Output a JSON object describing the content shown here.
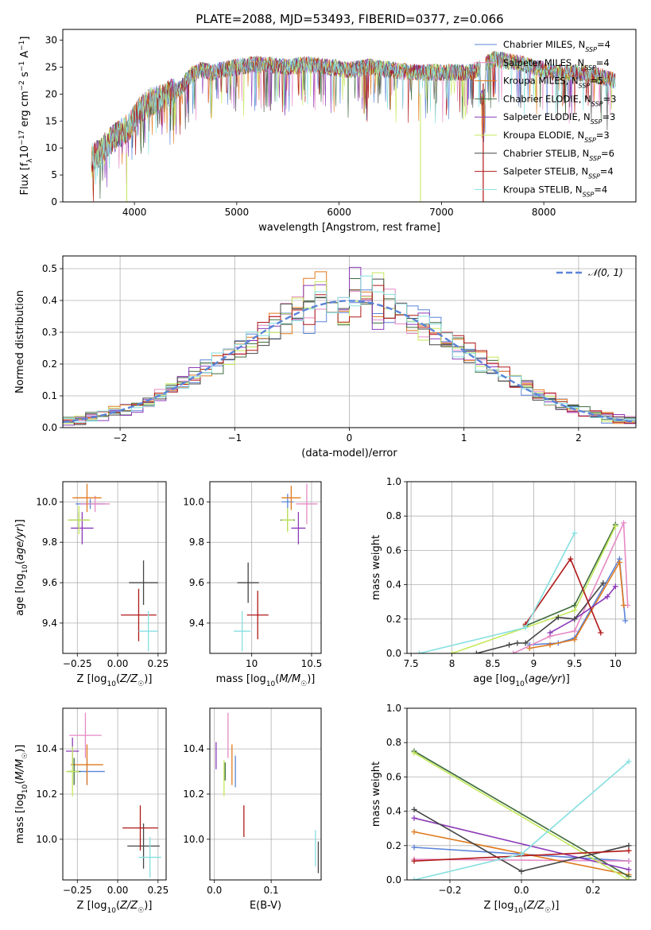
{
  "figure": {
    "title": "PLATE=2088, MJD=53493, FIBERID=0377, z=0.066"
  },
  "colors": {
    "Chabrier MILES": "#5b84d8",
    "Salpeter MILES": "#e68ac5",
    "Kroupa MILES": "#e07a1f",
    "Chabrier ELODIE": "#3d6b3d",
    "Salpeter ELODIE": "#8b3ab8",
    "Kroupa ELODIE": "#c4e85a",
    "Chabrier STELIB": "#454545",
    "Salpeter STELIB": "#b01818",
    "Kroupa STELIB": "#86dfe0",
    "gaussian": "#5b84d8",
    "grid": "#b0b0b0"
  },
  "chart_data": [
    {
      "id": "spectrum",
      "type": "line",
      "title": "PLATE=2088, MJD=53493, FIBERID=0377, z=0.066",
      "xlabel": "wavelength [Angstrom, rest frame]",
      "ylabel": "Flux [f_λ 10^-17 erg cm^-2 s^-1 A^-1]",
      "xlim": [
        3300,
        8900
      ],
      "ylim": [
        0,
        32
      ],
      "xticks": [
        4000,
        5000,
        6000,
        7000,
        8000
      ],
      "yticks": [
        0,
        5,
        10,
        15,
        20,
        25,
        30
      ],
      "grid": false,
      "legend_position": "right",
      "series": [
        {
          "name": "Chabrier MILES, N_SSP=4"
        },
        {
          "name": "Salpeter MILES, N_SSP=4"
        },
        {
          "name": "Kroupa MILES, N_SSP=5"
        },
        {
          "name": "Chabrier ELODIE, N_SSP=3"
        },
        {
          "name": "Salpeter ELODIE, N_SSP=3"
        },
        {
          "name": "Kroupa ELODIE, N_SSP=3"
        },
        {
          "name": "Chabrier STELIB, N_SSP=6"
        },
        {
          "name": "Salpeter STELIB, N_SSP=4"
        },
        {
          "name": "Kroupa STELIB, N_SSP=4"
        }
      ],
      "continuum": {
        "x": [
          3580,
          3650,
          3750,
          3850,
          3950,
          4050,
          4150,
          4250,
          4350,
          4450,
          4550,
          4650,
          4750,
          4850,
          5000,
          5150,
          5300,
          5500,
          5700,
          5900,
          6100,
          6300,
          6500,
          6700,
          6900,
          7100,
          7300,
          7500,
          7700,
          7900,
          8100,
          8300,
          8500,
          8700
        ],
        "y": [
          8,
          9,
          11,
          12.5,
          14,
          17,
          18.5,
          19,
          20,
          21,
          23.5,
          24.5,
          24,
          24.5,
          25,
          25.5,
          25.5,
          25,
          25.5,
          25,
          24.5,
          25,
          24.5,
          24,
          24,
          24,
          24,
          26.5,
          26,
          25,
          24,
          24,
          23.5,
          22.5
        ]
      }
    },
    {
      "id": "residuals",
      "type": "line",
      "xlabel": "(data-model)/error",
      "ylabel": "Normed distribution",
      "xlim": [
        -2.5,
        2.5
      ],
      "ylim": [
        0,
        0.54
      ],
      "xticks": [
        -2,
        -1,
        0,
        1,
        2
      ],
      "yticks": [
        0.0,
        0.1,
        0.2,
        0.3,
        0.4,
        0.5
      ],
      "grid": true,
      "legend_position": "upper right",
      "legend": "𝒩(0, 1)",
      "gaussian": {
        "mean": 0,
        "sigma": 1
      }
    },
    {
      "id": "age-vs-Z",
      "type": "scatter",
      "xlabel": "Z [log10(Z/Z☉)]",
      "ylabel": "age [log10(age/yr)]",
      "xlim": [
        -0.34,
        0.3
      ],
      "ylim": [
        9.25,
        10.1
      ],
      "xticks": [
        -0.25,
        0.0,
        0.25
      ],
      "xticklabels": [
        "−0.25",
        "0.00",
        "0.25"
      ],
      "yticks": [
        9.4,
        9.6,
        9.8,
        10.0
      ],
      "grid": true,
      "points": [
        {
          "s": "Chabrier MILES",
          "x": -0.17,
          "y": 9.99,
          "xe": 0.09,
          "ye": 0.025
        },
        {
          "s": "Salpeter MILES",
          "x": -0.14,
          "y": 9.99,
          "xe": 0.09,
          "ye": 0.04
        },
        {
          "s": "Kroupa MILES",
          "x": -0.19,
          "y": 10.02,
          "xe": 0.09,
          "ye": 0.07
        },
        {
          "s": "Chabrier ELODIE",
          "x": -0.24,
          "y": 9.91,
          "xe": 0.06,
          "ye": 0.04
        },
        {
          "s": "Salpeter ELODIE",
          "x": -0.22,
          "y": 9.87,
          "xe": 0.07,
          "ye": 0.08
        },
        {
          "s": "Kroupa ELODIE",
          "x": -0.24,
          "y": 9.91,
          "xe": 0.07,
          "ye": 0.07
        },
        {
          "s": "Chabrier STELIB",
          "x": 0.16,
          "y": 9.6,
          "xe": 0.09,
          "ye": 0.11
        },
        {
          "s": "Salpeter STELIB",
          "x": 0.13,
          "y": 9.44,
          "xe": 0.11,
          "ye": 0.13
        },
        {
          "s": "Kroupa STELIB",
          "x": 0.19,
          "y": 9.36,
          "xe": 0.06,
          "ye": 0.1
        }
      ]
    },
    {
      "id": "age-vs-mass",
      "type": "scatter",
      "xlabel": "mass [log10(M/M☉)]",
      "ylabel": "",
      "xlim": [
        9.65,
        10.58
      ],
      "ylim": [
        9.25,
        10.1
      ],
      "xticks": [
        10.0,
        10.5
      ],
      "yticks": [
        9.4,
        9.6,
        9.8,
        10.0
      ],
      "grid": true,
      "points": [
        {
          "s": "Chabrier MILES",
          "x": 10.3,
          "y": 10.0,
          "xe": 0.05,
          "ye": 0.04
        },
        {
          "s": "Salpeter MILES",
          "x": 10.46,
          "y": 9.99,
          "xe": 0.09,
          "ye": 0.1
        },
        {
          "s": "Kroupa MILES",
          "x": 10.33,
          "y": 10.02,
          "xe": 0.08,
          "ye": 0.06
        },
        {
          "s": "Chabrier ELODIE",
          "x": 10.3,
          "y": 9.91,
          "xe": 0.06,
          "ye": 0.05
        },
        {
          "s": "Salpeter ELODIE",
          "x": 10.39,
          "y": 9.87,
          "xe": 0.06,
          "ye": 0.08
        },
        {
          "s": "Kroupa ELODIE",
          "x": 10.3,
          "y": 9.91,
          "xe": 0.05,
          "ye": 0.06
        },
        {
          "s": "Chabrier STELIB",
          "x": 9.97,
          "y": 9.6,
          "xe": 0.09,
          "ye": 0.1
        },
        {
          "s": "Salpeter STELIB",
          "x": 10.05,
          "y": 9.44,
          "xe": 0.09,
          "ye": 0.12
        },
        {
          "s": "Kroupa STELIB",
          "x": 9.92,
          "y": 9.36,
          "xe": 0.07,
          "ye": 0.1
        }
      ]
    },
    {
      "id": "weight-vs-age",
      "type": "line",
      "xlabel": "age [log10(age/yr)]",
      "ylabel": "mass weight",
      "xlim": [
        7.45,
        10.25
      ],
      "ylim": [
        0,
        1
      ],
      "xticks": [
        7.5,
        8.0,
        8.5,
        9.0,
        9.5,
        10.0
      ],
      "yticks": [
        0.0,
        0.2,
        0.4,
        0.6,
        0.8,
        1.0
      ],
      "grid": true,
      "series": [
        {
          "s": "Chabrier MILES",
          "x": [
            8.95,
            9.3,
            9.5,
            10.05,
            10.12
          ],
          "y": [
            0.05,
            0.06,
            0.09,
            0.55,
            0.19
          ]
        },
        {
          "s": "Salpeter MILES",
          "x": [
            8.75,
            9.2,
            9.5,
            10.1,
            10.15
          ],
          "y": [
            0.0,
            0.1,
            0.13,
            0.76,
            0.28
          ]
        },
        {
          "s": "Kroupa MILES",
          "x": [
            8.95,
            9.2,
            9.5,
            10.05,
            10.1
          ],
          "y": [
            0.03,
            0.05,
            0.08,
            0.53,
            0.28
          ]
        },
        {
          "s": "Chabrier ELODIE",
          "x": [
            8.9,
            9.5,
            10.0
          ],
          "y": [
            0.16,
            0.28,
            0.75
          ]
        },
        {
          "s": "Salpeter ELODIE",
          "x": [
            9.2,
            9.5,
            9.9,
            10.0
          ],
          "y": [
            0.12,
            0.2,
            0.33,
            0.39
          ]
        },
        {
          "s": "Kroupa ELODIE",
          "x": [
            8.0,
            9.5,
            10.0
          ],
          "y": [
            0.0,
            0.25,
            0.74
          ]
        },
        {
          "s": "Chabrier STELIB",
          "x": [
            8.3,
            8.7,
            8.8,
            8.9,
            9.3,
            9.5,
            9.85
          ],
          "y": [
            0.0,
            0.05,
            0.06,
            0.06,
            0.21,
            0.2,
            0.41
          ]
        },
        {
          "s": "Salpeter STELIB",
          "x": [
            8.9,
            9.45,
            9.82
          ],
          "y": [
            0.17,
            0.55,
            0.12
          ]
        },
        {
          "s": "Kroupa STELIB",
          "x": [
            7.6,
            8.9,
            9.5
          ],
          "y": [
            0.0,
            0.15,
            0.7
          ]
        }
      ]
    },
    {
      "id": "mass-vs-Z",
      "type": "scatter",
      "xlabel": "Z [log10(Z/Z☉)]",
      "ylabel": "mass [log10(M/M☉)]",
      "xlim": [
        -0.34,
        0.3
      ],
      "ylim": [
        9.82,
        10.58
      ],
      "xticks": [
        -0.25,
        0.0,
        0.25
      ],
      "xticklabels": [
        "−0.25",
        "0.00",
        "0.25"
      ],
      "yticks": [
        10.0,
        10.2,
        10.4
      ],
      "grid": true,
      "points": [
        {
          "s": "Chabrier MILES",
          "x": -0.19,
          "y": 10.3,
          "xe": 0.11,
          "ye": 0.06
        },
        {
          "s": "Salpeter MILES",
          "x": -0.2,
          "y": 10.46,
          "xe": 0.1,
          "ye": 0.1
        },
        {
          "s": "Kroupa MILES",
          "x": -0.19,
          "y": 10.33,
          "xe": 0.1,
          "ye": 0.09
        },
        {
          "s": "Chabrier ELODIE",
          "x": -0.27,
          "y": 10.3,
          "xe": 0.04,
          "ye": 0.06
        },
        {
          "s": "Salpeter ELODIE",
          "x": -0.28,
          "y": 10.39,
          "xe": 0.04,
          "ye": 0.06
        },
        {
          "s": "Kroupa ELODIE",
          "x": -0.28,
          "y": 10.3,
          "xe": 0.04,
          "ye": 0.11
        },
        {
          "s": "Chabrier STELIB",
          "x": 0.16,
          "y": 9.97,
          "xe": 0.1,
          "ye": 0.1
        },
        {
          "s": "Salpeter STELIB",
          "x": 0.14,
          "y": 10.05,
          "xe": 0.11,
          "ye": 0.1
        },
        {
          "s": "Kroupa STELIB",
          "x": 0.2,
          "y": 9.92,
          "xe": 0.07,
          "ye": 0.09
        }
      ]
    },
    {
      "id": "mass-vs-EBV",
      "type": "scatter",
      "xlabel": "E(B-V)",
      "ylabel": "",
      "xlim": [
        -0.008,
        0.188
      ],
      "ylim": [
        9.82,
        10.58
      ],
      "xticks": [
        0.0,
        0.1
      ],
      "xticklabels": [
        "0.0",
        "0.1"
      ],
      "yticks": [
        10.0,
        10.2,
        10.4
      ],
      "grid": true,
      "points": [
        {
          "s": "Chabrier MILES",
          "x": 0.037,
          "y": 10.3,
          "xe": 0,
          "ye": 0.07
        },
        {
          "s": "Salpeter MILES",
          "x": 0.024,
          "y": 10.46,
          "xe": 0,
          "ye": 0.1
        },
        {
          "s": "Kroupa MILES",
          "x": 0.031,
          "y": 10.33,
          "xe": 0,
          "ye": 0.09
        },
        {
          "s": "Chabrier ELODIE",
          "x": 0.019,
          "y": 10.3,
          "xe": 0,
          "ye": 0.04
        },
        {
          "s": "Salpeter ELODIE",
          "x": 0.003,
          "y": 10.37,
          "xe": 0,
          "ye": 0.06
        },
        {
          "s": "Kroupa ELODIE",
          "x": 0.017,
          "y": 10.27,
          "xe": 0,
          "ye": 0.08
        },
        {
          "s": "Chabrier STELIB",
          "x": 0.183,
          "y": 9.92,
          "xe": 0,
          "ye": 0.07
        },
        {
          "s": "Salpeter STELIB",
          "x": 0.052,
          "y": 10.08,
          "xe": 0,
          "ye": 0.07
        },
        {
          "s": "Kroupa STELIB",
          "x": 0.178,
          "y": 9.96,
          "xe": 0,
          "ye": 0.08
        }
      ]
    },
    {
      "id": "weight-vs-Z",
      "type": "line",
      "xlabel": "Z [log10(Z/Z☉)]",
      "ylabel": "mass weight",
      "xlim": [
        -0.32,
        0.32
      ],
      "ylim": [
        0,
        1
      ],
      "xticks": [
        -0.2,
        0.0,
        0.2
      ],
      "xticklabels": [
        "−0.2",
        "0.0",
        "0.2"
      ],
      "yticks": [
        0.0,
        0.2,
        0.4,
        0.6,
        0.8,
        1.0
      ],
      "grid": true,
      "series": [
        {
          "s": "Chabrier MILES",
          "x": [
            -0.3,
            0.0,
            0.3
          ],
          "y": [
            0.19,
            0.15,
            0.11
          ]
        },
        {
          "s": "Salpeter MILES",
          "x": [
            -0.3,
            0.3
          ],
          "y": [
            0.12,
            0.11
          ]
        },
        {
          "s": "Kroupa MILES",
          "x": [
            -0.3,
            0.3
          ],
          "y": [
            0.28,
            0.03
          ]
        },
        {
          "s": "Chabrier ELODIE",
          "x": [
            -0.3,
            0.3
          ],
          "y": [
            0.75,
            0.02
          ]
        },
        {
          "s": "Salpeter ELODIE",
          "x": [
            -0.3,
            0.3
          ],
          "y": [
            0.36,
            0.06
          ]
        },
        {
          "s": "Kroupa ELODIE",
          "x": [
            -0.3,
            0.3
          ],
          "y": [
            0.74,
            0.0
          ]
        },
        {
          "s": "Chabrier STELIB",
          "x": [
            -0.3,
            0.0,
            0.3
          ],
          "y": [
            0.41,
            0.05,
            0.2
          ]
        },
        {
          "s": "Salpeter STELIB",
          "x": [
            -0.3,
            0.3
          ],
          "y": [
            0.11,
            0.17
          ]
        },
        {
          "s": "Kroupa STELIB",
          "x": [
            -0.3,
            0.0,
            0.3
          ],
          "y": [
            0.0,
            0.15,
            0.69
          ]
        }
      ]
    }
  ]
}
